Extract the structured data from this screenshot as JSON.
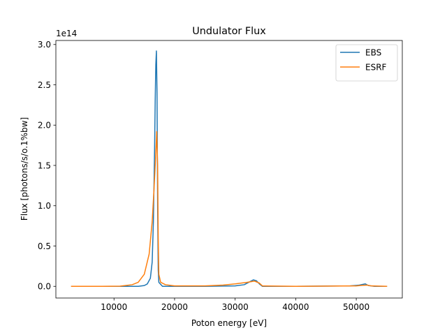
{
  "chart_data": {
    "type": "line",
    "title": "Undulator Flux",
    "xlabel": "Poton energy [eV]",
    "ylabel": "Flux [photons/s/o.1%bw]",
    "y_offset_text": "1e14",
    "xlim": [
      400,
      57600
    ],
    "ylim": [
      -0.145,
      3.05
    ],
    "xticks": [
      10000,
      20000,
      30000,
      40000,
      50000
    ],
    "xtick_labels": [
      "10000",
      "20000",
      "30000",
      "40000",
      "50000"
    ],
    "yticks": [
      0.0,
      0.5,
      1.0,
      1.5,
      2.0,
      2.5,
      3.0
    ],
    "ytick_labels": [
      "0.0",
      "0.5",
      "1.0",
      "1.5",
      "2.0",
      "2.5",
      "3.0"
    ],
    "grid": false,
    "legend_position": "top-right",
    "units_note": "y values in units of 1e14 photons/s/0.1%bw",
    "series": [
      {
        "name": "EBS",
        "color": "#1f77b4",
        "points": [
          [
            3000,
            0.0
          ],
          [
            8000,
            0.0
          ],
          [
            12000,
            0.0
          ],
          [
            14000,
            0.0
          ],
          [
            15000,
            0.01
          ],
          [
            15500,
            0.03
          ],
          [
            16000,
            0.1
          ],
          [
            16300,
            0.3
          ],
          [
            16500,
            0.8
          ],
          [
            16700,
            1.7
          ],
          [
            16800,
            2.3
          ],
          [
            16900,
            2.75
          ],
          [
            17000,
            2.92
          ],
          [
            17100,
            2.4
          ],
          [
            17200,
            1.0
          ],
          [
            17300,
            0.2
          ],
          [
            17400,
            0.05
          ],
          [
            18000,
            0.0
          ],
          [
            25000,
            0.0
          ],
          [
            30000,
            0.005
          ],
          [
            31500,
            0.02
          ],
          [
            32500,
            0.06
          ],
          [
            33000,
            0.08
          ],
          [
            33500,
            0.07
          ],
          [
            34000,
            0.03
          ],
          [
            34500,
            0.0
          ],
          [
            40000,
            0.0
          ],
          [
            49000,
            0.005
          ],
          [
            50500,
            0.015
          ],
          [
            51500,
            0.03
          ],
          [
            52000,
            0.01
          ],
          [
            53000,
            0.0
          ],
          [
            55000,
            0.0
          ]
        ]
      },
      {
        "name": "ESRF",
        "color": "#ff7f0e",
        "points": [
          [
            3000,
            0.0
          ],
          [
            8000,
            0.0
          ],
          [
            11000,
            0.002
          ],
          [
            13000,
            0.02
          ],
          [
            14000,
            0.05
          ],
          [
            15000,
            0.15
          ],
          [
            15800,
            0.4
          ],
          [
            16300,
            0.8
          ],
          [
            16600,
            1.2
          ],
          [
            16900,
            1.65
          ],
          [
            17050,
            1.92
          ],
          [
            17200,
            1.5
          ],
          [
            17300,
            0.6
          ],
          [
            17400,
            0.15
          ],
          [
            17700,
            0.05
          ],
          [
            18500,
            0.02
          ],
          [
            20000,
            0.005
          ],
          [
            25000,
            0.005
          ],
          [
            28000,
            0.015
          ],
          [
            30000,
            0.03
          ],
          [
            32000,
            0.05
          ],
          [
            33200,
            0.065
          ],
          [
            34000,
            0.04
          ],
          [
            34500,
            0.005
          ],
          [
            40000,
            0.0
          ],
          [
            50000,
            0.005
          ],
          [
            51000,
            0.012
          ],
          [
            51800,
            0.015
          ],
          [
            52500,
            0.005
          ],
          [
            55000,
            0.0
          ]
        ]
      }
    ]
  }
}
